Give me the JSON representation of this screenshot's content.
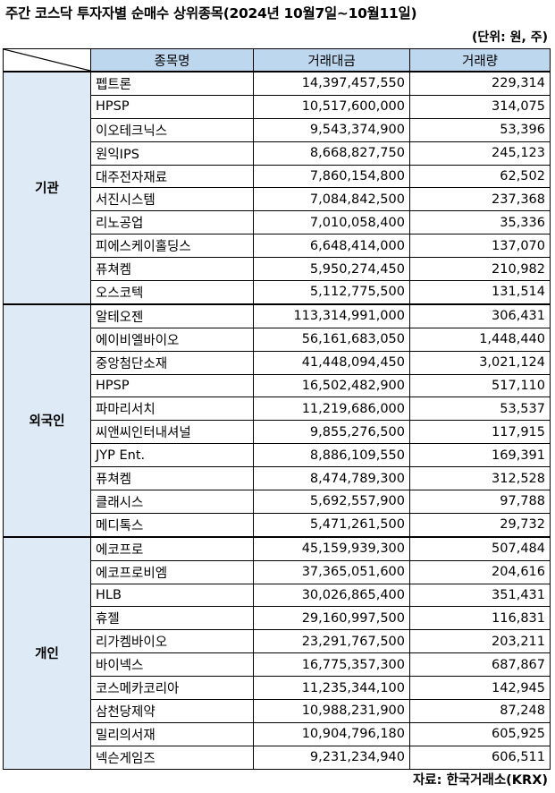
{
  "title": "주간 코스닥 투자자별 순매수 상위종목(2024년 10월7일~10월11일)",
  "unit": "(단위: 원, 주)",
  "source": "자료: 한국거래소(KRX)",
  "headers": {
    "name": "종목명",
    "amount": "거래대금",
    "volume": "거래량"
  },
  "groups": [
    {
      "label": "기관",
      "rows": [
        {
          "name": "펩트론",
          "amount": "14,397,457,550",
          "volume": "229,314"
        },
        {
          "name": "HPSP",
          "amount": "10,517,600,000",
          "volume": "314,075"
        },
        {
          "name": "이오테크닉스",
          "amount": "9,543,374,900",
          "volume": "53,396"
        },
        {
          "name": "원익IPS",
          "amount": "8,668,827,750",
          "volume": "245,123"
        },
        {
          "name": "대주전자재료",
          "amount": "7,860,154,800",
          "volume": "62,502"
        },
        {
          "name": "서진시스템",
          "amount": "7,084,842,500",
          "volume": "237,368"
        },
        {
          "name": "리노공업",
          "amount": "7,010,058,400",
          "volume": "35,336"
        },
        {
          "name": "피에스케이홀딩스",
          "amount": "6,648,414,000",
          "volume": "137,070"
        },
        {
          "name": "퓨쳐켐",
          "amount": "5,950,274,450",
          "volume": "210,982"
        },
        {
          "name": "오스코텍",
          "amount": "5,112,775,500",
          "volume": "131,514"
        }
      ]
    },
    {
      "label": "외국인",
      "rows": [
        {
          "name": "알테오젠",
          "amount": "113,314,991,000",
          "volume": "306,431"
        },
        {
          "name": "에이비엘바이오",
          "amount": "56,161,683,050",
          "volume": "1,448,440"
        },
        {
          "name": "중앙첨단소재",
          "amount": "41,448,094,450",
          "volume": "3,021,124"
        },
        {
          "name": "HPSP",
          "amount": "16,502,482,900",
          "volume": "517,110"
        },
        {
          "name": "파마리서치",
          "amount": "11,219,686,000",
          "volume": "53,537"
        },
        {
          "name": "씨앤씨인터내셔널",
          "amount": "9,855,276,500",
          "volume": "117,915"
        },
        {
          "name": "JYP Ent.",
          "amount": "8,886,109,550",
          "volume": "169,391"
        },
        {
          "name": "퓨쳐켐",
          "amount": "8,474,789,300",
          "volume": "312,528"
        },
        {
          "name": "클래시스",
          "amount": "5,692,557,900",
          "volume": "97,788"
        },
        {
          "name": "메디톡스",
          "amount": "5,471,261,500",
          "volume": "29,732"
        }
      ]
    },
    {
      "label": "개인",
      "rows": [
        {
          "name": "에코프로",
          "amount": "45,159,939,300",
          "volume": "507,484"
        },
        {
          "name": "에코프로비엠",
          "amount": "37,365,051,600",
          "volume": "204,616"
        },
        {
          "name": "HLB",
          "amount": "30,026,865,400",
          "volume": "351,431"
        },
        {
          "name": "휴젤",
          "amount": "29,160,997,500",
          "volume": "116,831"
        },
        {
          "name": "리가켐바이오",
          "amount": "23,291,767,500",
          "volume": "203,211"
        },
        {
          "name": "바이넥스",
          "amount": "16,775,357,300",
          "volume": "687,867"
        },
        {
          "name": "코스메카코리아",
          "amount": "11,235,344,100",
          "volume": "142,945"
        },
        {
          "name": "삼천당제약",
          "amount": "10,988,231,900",
          "volume": "87,248"
        },
        {
          "name": "밀리의서재",
          "amount": "10,904,796,180",
          "volume": "605,925"
        },
        {
          "name": "넥슨게임즈",
          "amount": "9,231,234,940",
          "volume": "606,511"
        }
      ]
    }
  ]
}
